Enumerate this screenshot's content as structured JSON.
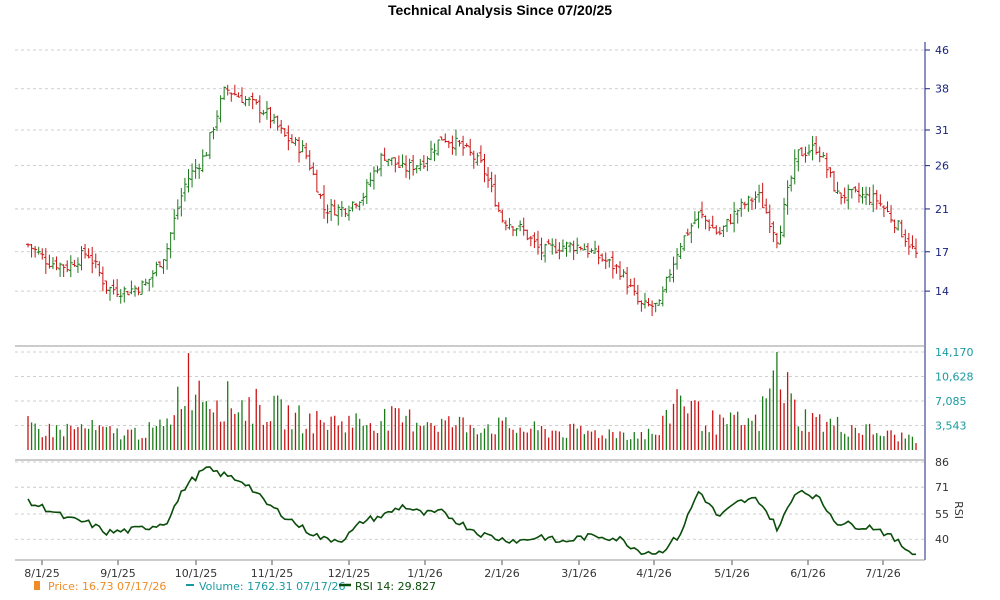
{
  "title": "Technical Analysis Since 07/20/25",
  "colors": {
    "up": "#1a7a1a",
    "down": "#c81414",
    "price_axis": "#1a237e",
    "volume_axis": "#1a9aa0",
    "rsi": "#0a4d0a",
    "grid": "#c0c0c0",
    "legend_price": "#f08c28",
    "legend_volume": "#1a9aa0",
    "legend_rsi": "#0a4d0a"
  },
  "legend": {
    "price": "Price: 16.73  07/17/26",
    "volume": "Volume: 1762.31  07/17/26",
    "rsi": "RSI 14: 29.827"
  },
  "chart_data": [
    {
      "type": "ohlc",
      "panel": "price",
      "yticks": [
        "14",
        "17",
        "21",
        "26",
        "31",
        "38",
        "46"
      ],
      "ylim": [
        11,
        46
      ],
      "xticks": [
        "8/1/25",
        "9/1/25",
        "10/1/25",
        "11/1/25",
        "12/1/25",
        "1/1/26",
        "2/1/26",
        "3/1/26",
        "4/1/26",
        "5/1/26",
        "6/1/26",
        "7/1/26"
      ],
      "x_range": [
        "07/20/25",
        "07/17/26"
      ],
      "series": [
        {
          "values_close_weekly": [
            17.6,
            16.2,
            15.8,
            17.0,
            14.2,
            14.0,
            14.5,
            17.0,
            24.0,
            27.5,
            38.0,
            36.0,
            34.0,
            30.0,
            28.0,
            21.0,
            21.0,
            22.5,
            27.5,
            25.5,
            26.5,
            30.0,
            28.5,
            26.0,
            20.0,
            19.0,
            17.0,
            17.5,
            17.5,
            16.5,
            15.5,
            13.0,
            13.0,
            17.5,
            20.5,
            18.5,
            21.0,
            22.5,
            18.0,
            27.5,
            28.5,
            22.5,
            22.5,
            22.0,
            19.5,
            16.73
          ]
        }
      ]
    },
    {
      "type": "bar",
      "panel": "volume",
      "yticks": [
        "3,543",
        "7,085",
        "10,628",
        "14,170"
      ],
      "ylim": [
        0,
        14170
      ],
      "values_weekly": [
        3500,
        2800,
        3000,
        3200,
        2600,
        2400,
        2700,
        3400,
        10800,
        8500,
        7000,
        6500,
        6000,
        5200,
        4300,
        4000,
        4200,
        4000,
        4500,
        4300,
        4500,
        3900,
        3700,
        3600,
        3400,
        3000,
        2800,
        2700,
        2600,
        2500,
        2500,
        2300,
        2400,
        8500,
        5000,
        3600,
        4000,
        3800,
        12000,
        4800,
        4200,
        3500,
        3200,
        2500,
        2000,
        1762.31
      ]
    },
    {
      "type": "line",
      "panel": "rsi",
      "name": "RSI 14",
      "yticks": [
        "40",
        "55",
        "71",
        "86"
      ],
      "ylim": [
        30,
        86
      ],
      "axis_label": "RSI",
      "values_weekly": [
        62,
        58,
        52,
        50,
        44,
        45,
        47,
        50,
        72,
        82,
        78,
        74,
        62,
        54,
        46,
        40,
        40,
        51,
        54,
        60,
        55,
        56,
        49,
        43,
        40,
        39,
        42,
        38,
        41,
        42,
        40,
        33,
        32,
        42,
        69,
        53,
        62,
        64,
        46,
        70,
        65,
        50,
        48,
        47,
        39,
        29.827
      ]
    }
  ]
}
